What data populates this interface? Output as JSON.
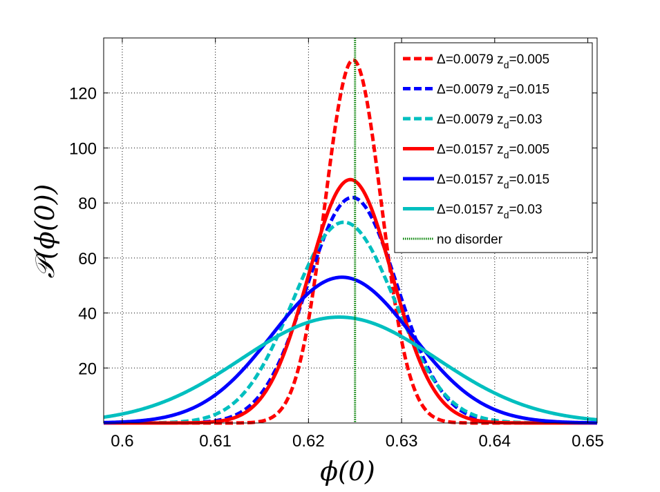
{
  "chart_data": {
    "type": "line",
    "title": "",
    "xlabel": "ϕ(0)",
    "ylabel": "𝒫(ϕ(0))",
    "xlim": [
      0.598,
      0.651
    ],
    "ylim": [
      0,
      140
    ],
    "xticks": [
      0.6,
      0.61,
      0.62,
      0.63,
      0.64,
      0.65
    ],
    "xtick_labels": [
      "0.6",
      "0.61",
      "0.62",
      "0.63",
      "0.64",
      "0.65"
    ],
    "yticks": [
      20,
      40,
      60,
      80,
      100,
      120
    ],
    "ytick_labels": [
      "20",
      "40",
      "60",
      "80",
      "100",
      "120"
    ],
    "grid": true,
    "legend_position": "top-right",
    "series": [
      {
        "name": "Δ=0.0079 z_d=0.005",
        "delta_label": "Δ=0.0079 z",
        "sub": "d",
        "suffix": "=0.005",
        "color": "#ff0000",
        "style": "dashed",
        "mu": 0.6248,
        "sigma": 0.00302,
        "peak": 132
      },
      {
        "name": "Δ=0.0079 z_d=0.015",
        "delta_label": "Δ=0.0079 z",
        "sub": "d",
        "suffix": "=0.015",
        "color": "#0000ff",
        "style": "dashed",
        "mu": 0.6247,
        "sigma": 0.00485,
        "peak": 82
      },
      {
        "name": "Δ=0.0079 z_d=0.03",
        "delta_label": "Δ=0.0079 z",
        "sub": "d",
        "suffix": "=0.03",
        "color": "#00bfbf",
        "style": "dashed",
        "mu": 0.6238,
        "sigma": 0.0055,
        "peak": 73
      },
      {
        "name": "Δ=0.0157 z_d=0.005",
        "delta_label": "Δ=0.0157 z",
        "sub": "d",
        "suffix": "=0.005",
        "color": "#ff0000",
        "style": "solid",
        "mu": 0.6245,
        "sigma": 0.0045,
        "peak": 88.5
      },
      {
        "name": "Δ=0.0157 z_d=0.015",
        "delta_label": "Δ=0.0157 z",
        "sub": "d",
        "suffix": "=0.015",
        "color": "#0000ff",
        "style": "solid",
        "mu": 0.6236,
        "sigma": 0.0075,
        "peak": 53
      },
      {
        "name": "Δ=0.0157 z_d=0.03",
        "delta_label": "Δ=0.0157 z",
        "sub": "d",
        "suffix": "=0.03",
        "color": "#00bfbf",
        "style": "solid",
        "mu": 0.6233,
        "sigma": 0.0105,
        "peak": 38.5
      },
      {
        "name": "no disorder",
        "delta_label": "no disorder",
        "sub": "",
        "suffix": "",
        "color": "#008000",
        "style": "dotted",
        "x_vertical": 0.625
      }
    ]
  }
}
